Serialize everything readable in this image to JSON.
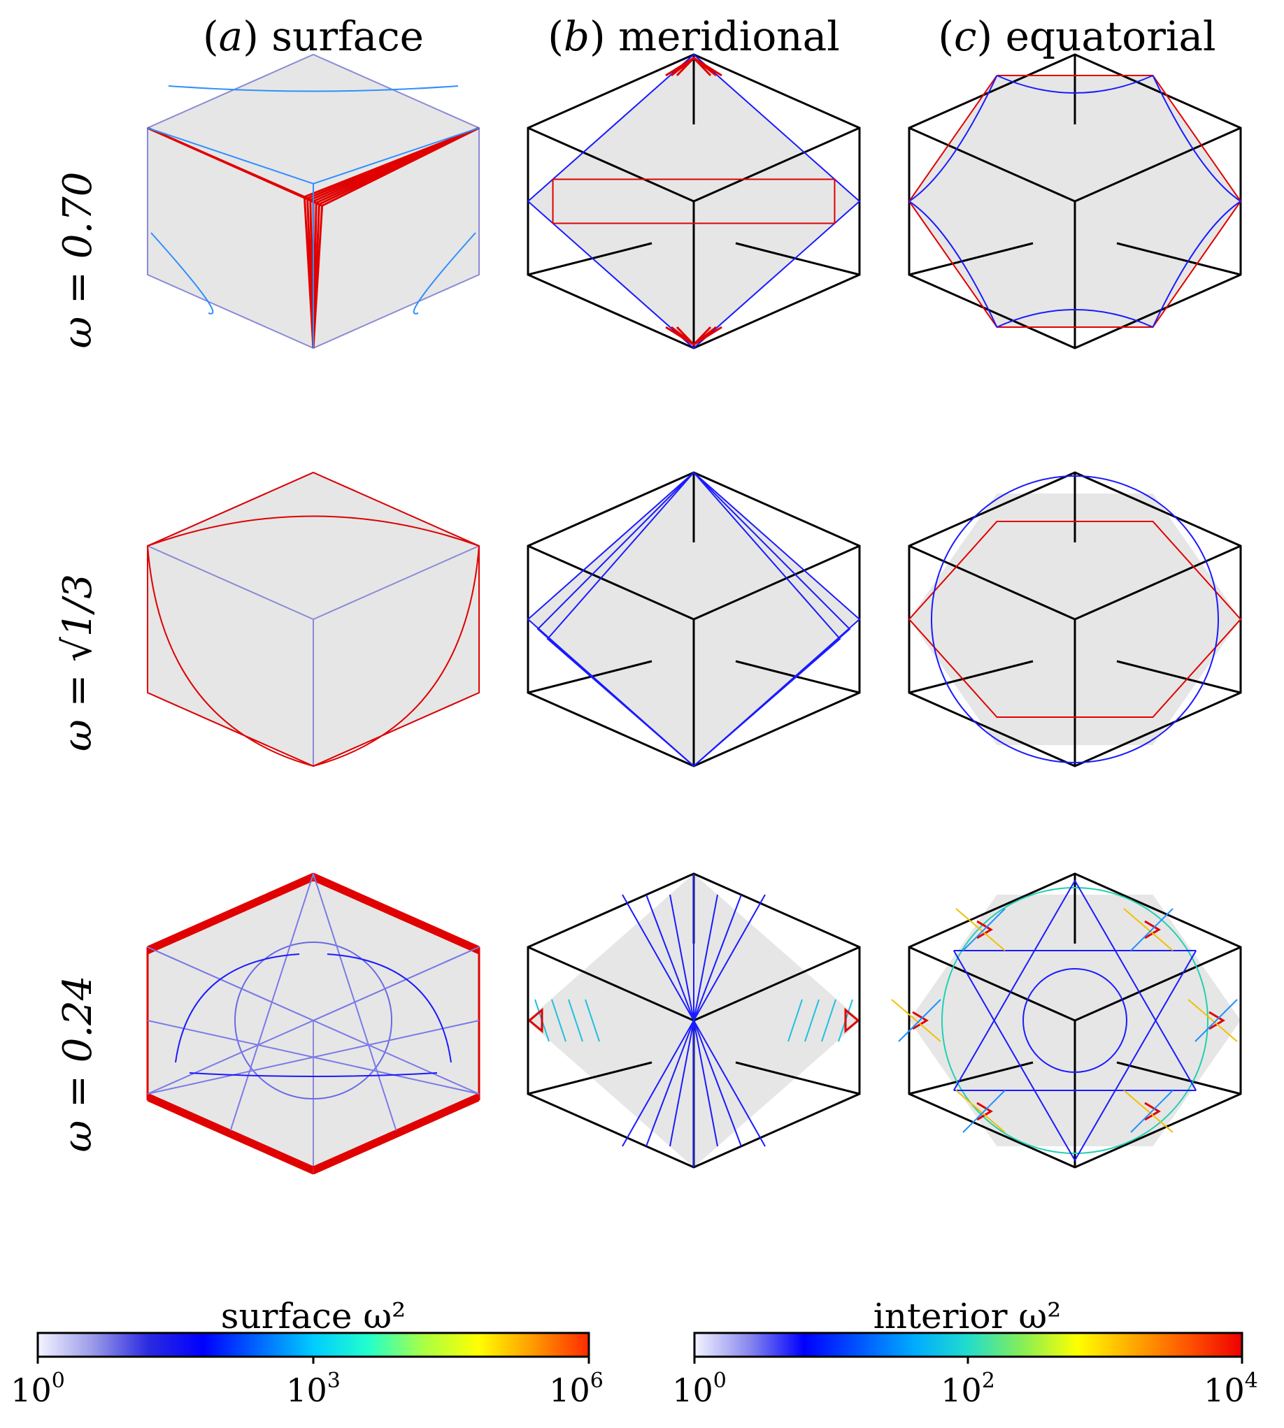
{
  "columns": [
    {
      "letter": "a",
      "name": "surface"
    },
    {
      "letter": "b",
      "name": "meridional"
    },
    {
      "letter": "c",
      "name": "equatorial"
    }
  ],
  "rows": [
    {
      "label": "ω = 0.70"
    },
    {
      "label": "ω = √1/3"
    },
    {
      "label": "ω = 0.24"
    }
  ],
  "colorbars": [
    {
      "title": "surface ω²",
      "ticks": [
        {
          "base": "10",
          "exp": "0"
        },
        {
          "base": "10",
          "exp": "3"
        },
        {
          "base": "10",
          "exp": "6"
        }
      ],
      "stops": [
        "#f4f4ff",
        "#9a9ae8",
        "#2b2be0",
        "#0000ff",
        "#0066ff",
        "#00ccff",
        "#22ffcc",
        "#aaff44",
        "#ffff00",
        "#ff9900",
        "#ff2a00"
      ]
    },
    {
      "title": "interior ω²",
      "ticks": [
        {
          "base": "10",
          "exp": "0"
        },
        {
          "base": "10",
          "exp": "2"
        },
        {
          "base": "10",
          "exp": "4"
        }
      ],
      "stops": [
        "#f4f4ff",
        "#8888ee",
        "#0000ff",
        "#0055ff",
        "#00aaff",
        "#22ddcc",
        "#88ee55",
        "#ffff00",
        "#ffaa00",
        "#ff5500",
        "#ee0000"
      ]
    }
  ],
  "colors": {
    "panel_fill": "#e6e6e6",
    "edge": "#000000",
    "surface_edge": "#8a8ad8",
    "red": "#e00000",
    "blue": "#1a1aff",
    "light_blue": "#2f8fff"
  }
}
